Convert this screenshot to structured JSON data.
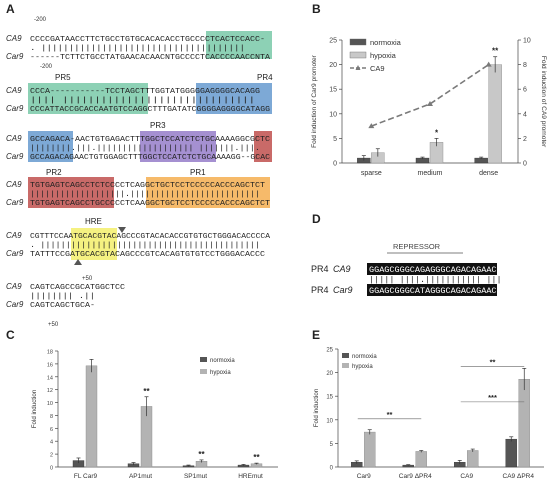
{
  "panels": {
    "A": {
      "label": "A",
      "pos_start_ca9": "-200",
      "pos_start_car9": "-200",
      "pos_end_ca9": "+50",
      "pos_end_car9": "+50",
      "species": [
        "CA9",
        "Car9"
      ],
      "blocks": [
        {
          "ca9": "CCCCGATAACCTTCTGCCTGTGCACACACCTGCCCCTCACTCCACC-",
          "match": " .  |||||||||||||||||||||||||||||||||||||  ",
          "car9": "------TCTTCTGCCTATGAACACAACNTGCCCCTCACCCCAACCNTA"
        },
        {
          "ca9": "CCCA-----------TCCTAGCTTTGGTATGGGGGAGGGGCACAGG",
          "match": "||||           ||||||||||||||||||||||||||||||",
          "car9": "CCCATTACCGCACCAATGTCCAGGCTTTGATATCGGGGAGGGGCATAGG"
        },
        {
          "ca9": "GCCAGACA-AACTGTGAGACTTTGGCTCCATCTCTGCAAAAGGCGCTC",
          "match": "||||||||.|||.||||||||||||||||||| |||||||.|||. ",
          "car9": "GCCAGACAGAACTGTGGAGCTTTGGCTCCATCTCTGCAAAAGG--GCAC"
        },
        {
          "ca9": "TGTGAGTCAGCCTCTCCCCTCAGGCTGCTCCTCCCCCACCCAGCTCT",
          "match": "|||||||||||||||||||.||||||||||||||||||||||||||",
          "car9": "TGTGAGTCAGCCTGCCCCCTCAAGGCTGCTCCTCCCCCACCCAGCTCT"
        },
        {
          "ca9": "CGTTTCCAATGCACGTACAGCCCGTACACACCGTGTGCTGGGACACCCCA",
          "match": " . |||||||||||||||||||||||||||||||||||||||||||",
          "car9": "TATTTCCGATGCACGTACAGCCCGTCACAGTGTGTCCTGGGACACCC"
        },
        {
          "ca9": "CAGTCAGCCGCATGGCTCC",
          "match": "||||||||  .||",
          "car9": "CAGTCAGCTGCA-"
        }
      ],
      "element_labels": {
        "pr5": "PR5",
        "pr4": "PR4",
        "pr3": "PR3",
        "pr2": "PR2",
        "pr1": "PR1",
        "hre": "HRE"
      },
      "colors": {
        "pr5": "#79c9a8",
        "pr4": "#6fa0d2",
        "pr3": "#9b84cc",
        "pr2": "#c0504d",
        "pr1": "#f5b35a",
        "hre": "#f4f07a"
      }
    },
    "B": {
      "label": "B",
      "legend": [
        "normoxia",
        "hypoxia",
        "CA9"
      ]
    },
    "C": {
      "label": "C",
      "legend": [
        "normoxia",
        "hypoxia"
      ]
    },
    "D": {
      "label": "D",
      "repressor_label": "REPRESSOR",
      "row1_prefix": "PR4",
      "row1_species": "CA9",
      "row1_seq": "GGAGCGGGCAGAGGGCAGACAGAAC",
      "row2_prefix": "PR4",
      "row2_species": "Car9",
      "row2_seq": "GGAGCGGGCATAGGGCAGACAGAAC",
      "match": "||||| ||||.||||||||||| |||"
    },
    "E": {
      "label": "E",
      "legend": [
        "normoxia",
        "hypoxia"
      ]
    }
  },
  "chart_data": [
    {
      "panel": "B",
      "type": "bar",
      "categories": [
        "sparse",
        "medium",
        "dense"
      ],
      "series": [
        {
          "name": "normoxia",
          "values": [
            1.0,
            1.0,
            1.0
          ],
          "errors": [
            0.5,
            0.2,
            0.2
          ]
        },
        {
          "name": "hypoxia",
          "values": [
            2.1,
            4.2,
            20.0
          ],
          "errors": [
            0.8,
            0.8,
            1.6
          ]
        },
        {
          "name": "CA9",
          "type": "line",
          "axis": "right",
          "values": [
            3.0,
            4.8,
            8.0
          ]
        }
      ],
      "annotations": [
        "",
        "*",
        "**"
      ],
      "ylabel": "Fold induction of Car9 promoter",
      "ylabel_right": "Fold induction of CA9 promoter",
      "ylim": [
        0,
        25
      ],
      "ylim_right": [
        0,
        10
      ],
      "yticks": [
        "0",
        "5",
        "10",
        "15",
        "20",
        "25"
      ],
      "yticks_right": [
        "0",
        "2",
        "4",
        "6",
        "8",
        "10"
      ],
      "colors": {
        "normoxia": "#555555",
        "hypoxia": "#c8c8c8",
        "CA9": "#7a7a7a"
      }
    },
    {
      "panel": "C",
      "type": "bar",
      "categories": [
        "FL Car9",
        "AP1mut",
        "SP1mut",
        "HREmut"
      ],
      "series": [
        {
          "name": "normoxia",
          "values": [
            1.0,
            0.5,
            0.2,
            0.3
          ],
          "errors": [
            0.4,
            0.2,
            0.1,
            0.1
          ]
        },
        {
          "name": "hypoxia",
          "values": [
            15.7,
            9.4,
            0.9,
            0.5
          ],
          "errors": [
            1.0,
            1.5,
            0.2,
            0.1
          ]
        }
      ],
      "annotations": [
        "",
        "**",
        "**",
        "**"
      ],
      "ylabel": "Fold induction",
      "ylim": [
        0,
        18
      ],
      "yticks": [
        "0",
        "2",
        "4",
        "6",
        "8",
        "10",
        "12",
        "14",
        "16",
        "18"
      ],
      "colors": {
        "normoxia": "#555555",
        "hypoxia": "#b3b3b3"
      }
    },
    {
      "panel": "E",
      "type": "bar",
      "categories": [
        "Car9",
        "Car9 ΔPR4",
        "CA9",
        "CA9 ΔPR4"
      ],
      "series": [
        {
          "name": "normoxia",
          "values": [
            1.0,
            0.4,
            1.0,
            5.9
          ],
          "errors": [
            0.3,
            0.1,
            0.4,
            0.5
          ]
        },
        {
          "name": "hypoxia",
          "values": [
            7.4,
            3.3,
            3.5,
            18.6
          ],
          "errors": [
            0.5,
            0.2,
            0.3,
            2.3
          ]
        }
      ],
      "brackets": [
        {
          "from": 0,
          "to": 1,
          "label": "**"
        },
        {
          "from": 2,
          "to": 3,
          "label": "***"
        },
        {
          "from": 2,
          "to": 3,
          "label": "**"
        }
      ],
      "ylabel": "Fold induction",
      "ylim": [
        0,
        25
      ],
      "yticks": [
        "0",
        "5",
        "10",
        "15",
        "20",
        "25"
      ],
      "colors": {
        "normoxia": "#555555",
        "hypoxia": "#b3b3b3"
      }
    }
  ]
}
